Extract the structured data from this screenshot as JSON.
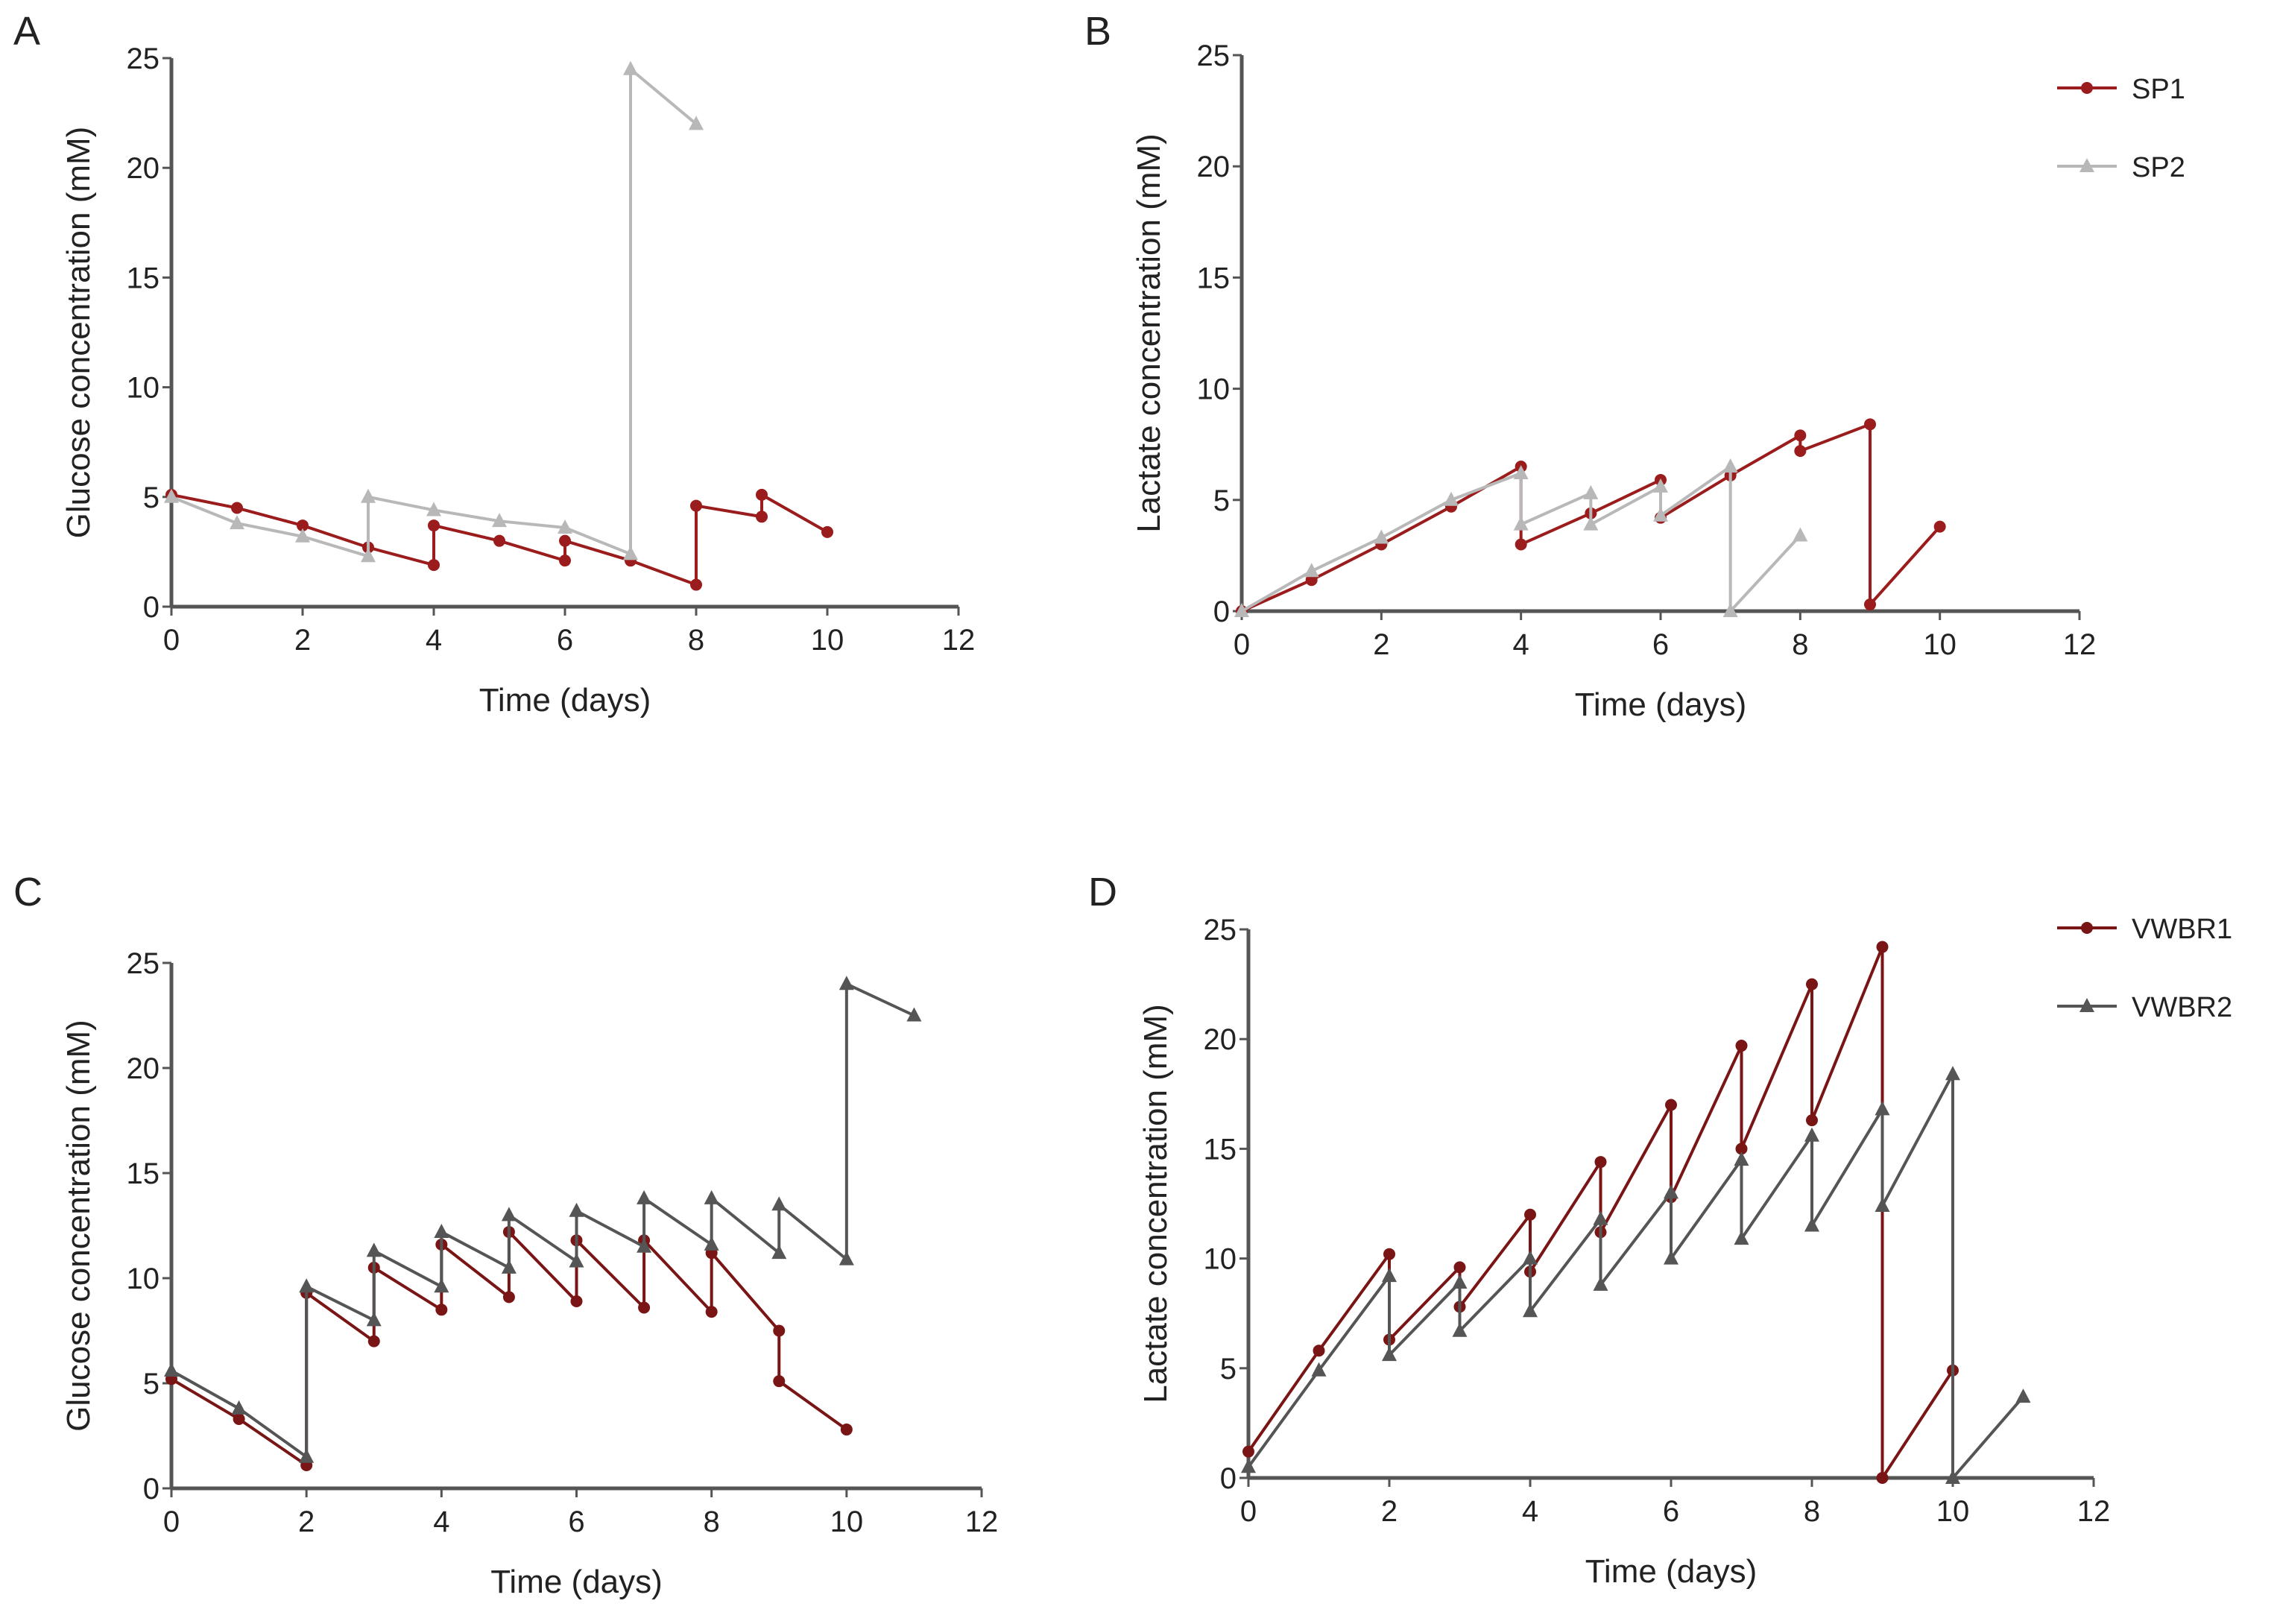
{
  "colors": {
    "SP1": "#9b1c1c",
    "SP2": "#b8b8b8",
    "VWBR1": "#7a1515",
    "VWBR2": "#555555",
    "axis": "#555555"
  },
  "chart_data": [
    {
      "panel": "A",
      "type": "line",
      "xlabel": "Time (days)",
      "ylabel": "Glucose concentration (mM)",
      "xlim": [
        0,
        12
      ],
      "ylim": [
        0,
        25
      ],
      "xticks": [
        0,
        2,
        4,
        6,
        8,
        10,
        12
      ],
      "yticks": [
        0,
        5,
        10,
        15,
        20,
        25
      ],
      "legend": null,
      "series": [
        {
          "name": "SP1",
          "marker": "circle",
          "points": [
            [
              0,
              5.1
            ],
            [
              1,
              4.5
            ],
            [
              2,
              3.7
            ],
            [
              3,
              2.7
            ],
            [
              4,
              1.9
            ],
            [
              4,
              3.7
            ],
            [
              5,
              3.0
            ],
            [
              6,
              2.1
            ],
            [
              6,
              3.0
            ],
            [
              7,
              2.1
            ],
            [
              8,
              1.0
            ],
            [
              8,
              4.6
            ],
            [
              9,
              4.1
            ],
            [
              9,
              5.1
            ],
            [
              10,
              3.4
            ]
          ]
        },
        {
          "name": "SP2",
          "marker": "triangle",
          "points": [
            [
              0,
              5.0
            ],
            [
              1,
              3.8
            ],
            [
              2,
              3.2
            ],
            [
              3,
              2.3
            ],
            [
              3,
              5.0
            ],
            [
              4,
              4.4
            ],
            [
              5,
              3.9
            ],
            [
              6,
              3.6
            ],
            [
              7,
              2.4
            ],
            [
              7,
              24.5
            ],
            [
              8,
              22.0
            ]
          ]
        }
      ]
    },
    {
      "panel": "B",
      "type": "line",
      "xlabel": "Time (days)",
      "ylabel": "Lactate concentration (mM)",
      "xlim": [
        0,
        12
      ],
      "ylim": [
        0,
        25
      ],
      "xticks": [
        0,
        2,
        4,
        6,
        8,
        10,
        12
      ],
      "yticks": [
        0,
        5,
        10,
        15,
        20,
        25
      ],
      "legend": "top-right",
      "series": [
        {
          "name": "SP1",
          "marker": "circle",
          "points": [
            [
              0,
              0
            ],
            [
              1,
              1.4
            ],
            [
              2,
              3.0
            ],
            [
              3,
              4.7
            ],
            [
              4,
              6.5
            ],
            [
              4,
              3.0
            ],
            [
              5,
              4.4
            ],
            [
              6,
              5.9
            ],
            [
              6,
              4.2
            ],
            [
              7,
              6.1
            ],
            [
              8,
              7.9
            ],
            [
              8,
              7.2
            ],
            [
              9,
              8.4
            ],
            [
              9,
              0.3
            ],
            [
              10,
              3.8
            ]
          ]
        },
        {
          "name": "SP2",
          "marker": "triangle",
          "points": [
            [
              0,
              0
            ],
            [
              1,
              1.8
            ],
            [
              2,
              3.3
            ],
            [
              3,
              5.0
            ],
            [
              4,
              6.2
            ],
            [
              4,
              3.9
            ],
            [
              5,
              5.3
            ],
            [
              5,
              3.9
            ],
            [
              6,
              5.6
            ],
            [
              6,
              4.3
            ],
            [
              7,
              6.5
            ],
            [
              7,
              0
            ],
            [
              8,
              3.4
            ]
          ]
        }
      ]
    },
    {
      "panel": "C",
      "type": "line",
      "xlabel": "Time (days)",
      "ylabel": "Glucose concentration (mM)",
      "xlim": [
        0,
        12
      ],
      "ylim": [
        0,
        25
      ],
      "xticks": [
        0,
        2,
        4,
        6,
        8,
        10,
        12
      ],
      "yticks": [
        0,
        5,
        10,
        15,
        20,
        25
      ],
      "legend": null,
      "series": [
        {
          "name": "VWBR1",
          "marker": "circle",
          "points": [
            [
              0,
              5.2
            ],
            [
              1,
              3.3
            ],
            [
              2,
              1.1
            ],
            [
              2,
              9.3
            ],
            [
              3,
              7.0
            ],
            [
              3,
              10.5
            ],
            [
              4,
              8.5
            ],
            [
              4,
              11.6
            ],
            [
              5,
              9.1
            ],
            [
              5,
              12.2
            ],
            [
              6,
              8.9
            ],
            [
              6,
              11.8
            ],
            [
              7,
              8.6
            ],
            [
              7,
              11.8
            ],
            [
              8,
              8.4
            ],
            [
              8,
              11.2
            ],
            [
              9,
              7.5
            ],
            [
              9,
              5.1
            ],
            [
              10,
              2.8
            ]
          ]
        },
        {
          "name": "VWBR2",
          "marker": "triangle",
          "points": [
            [
              0,
              5.6
            ],
            [
              1,
              3.8
            ],
            [
              2,
              1.5
            ],
            [
              2,
              9.6
            ],
            [
              3,
              8.0
            ],
            [
              3,
              11.3
            ],
            [
              4,
              9.6
            ],
            [
              4,
              12.2
            ],
            [
              5,
              10.5
            ],
            [
              5,
              13.0
            ],
            [
              6,
              10.8
            ],
            [
              6,
              13.2
            ],
            [
              7,
              11.5
            ],
            [
              7,
              13.8
            ],
            [
              8,
              11.6
            ],
            [
              8,
              13.8
            ],
            [
              9,
              11.2
            ],
            [
              9,
              13.5
            ],
            [
              10,
              10.9
            ],
            [
              10,
              24.0
            ],
            [
              11,
              22.5
            ]
          ]
        }
      ]
    },
    {
      "panel": "D",
      "type": "line",
      "xlabel": "Time (days)",
      "ylabel": "Lactate concentration (mM)",
      "xlim": [
        0,
        12
      ],
      "ylim": [
        0,
        25
      ],
      "xticks": [
        0,
        2,
        4,
        6,
        8,
        10,
        12
      ],
      "yticks": [
        0,
        5,
        10,
        15,
        20,
        25
      ],
      "legend": "top-right",
      "series": [
        {
          "name": "VWBR1",
          "marker": "circle",
          "points": [
            [
              0,
              1.2
            ],
            [
              1,
              5.8
            ],
            [
              2,
              10.2
            ],
            [
              2,
              6.3
            ],
            [
              3,
              9.6
            ],
            [
              3,
              7.8
            ],
            [
              4,
              12.0
            ],
            [
              4,
              9.4
            ],
            [
              5,
              14.4
            ],
            [
              5,
              11.2
            ],
            [
              6,
              17.0
            ],
            [
              6,
              12.8
            ],
            [
              7,
              19.7
            ],
            [
              7,
              15.0
            ],
            [
              8,
              22.5
            ],
            [
              8,
              16.3
            ],
            [
              9,
              24.2
            ],
            [
              9,
              0
            ],
            [
              10,
              4.9
            ]
          ]
        },
        {
          "name": "VWBR2",
          "marker": "triangle",
          "points": [
            [
              0,
              0.5
            ],
            [
              1,
              4.9
            ],
            [
              2,
              9.2
            ],
            [
              2,
              5.6
            ],
            [
              3,
              8.9
            ],
            [
              3,
              6.7
            ],
            [
              4,
              10.0
            ],
            [
              4,
              7.6
            ],
            [
              5,
              11.8
            ],
            [
              5,
              8.8
            ],
            [
              6,
              13.0
            ],
            [
              6,
              10.0
            ],
            [
              7,
              14.5
            ],
            [
              7,
              10.9
            ],
            [
              8,
              15.6
            ],
            [
              8,
              11.5
            ],
            [
              9,
              16.8
            ],
            [
              9,
              12.4
            ],
            [
              10,
              18.4
            ],
            [
              10,
              0
            ],
            [
              11,
              3.7
            ]
          ]
        }
      ]
    }
  ]
}
